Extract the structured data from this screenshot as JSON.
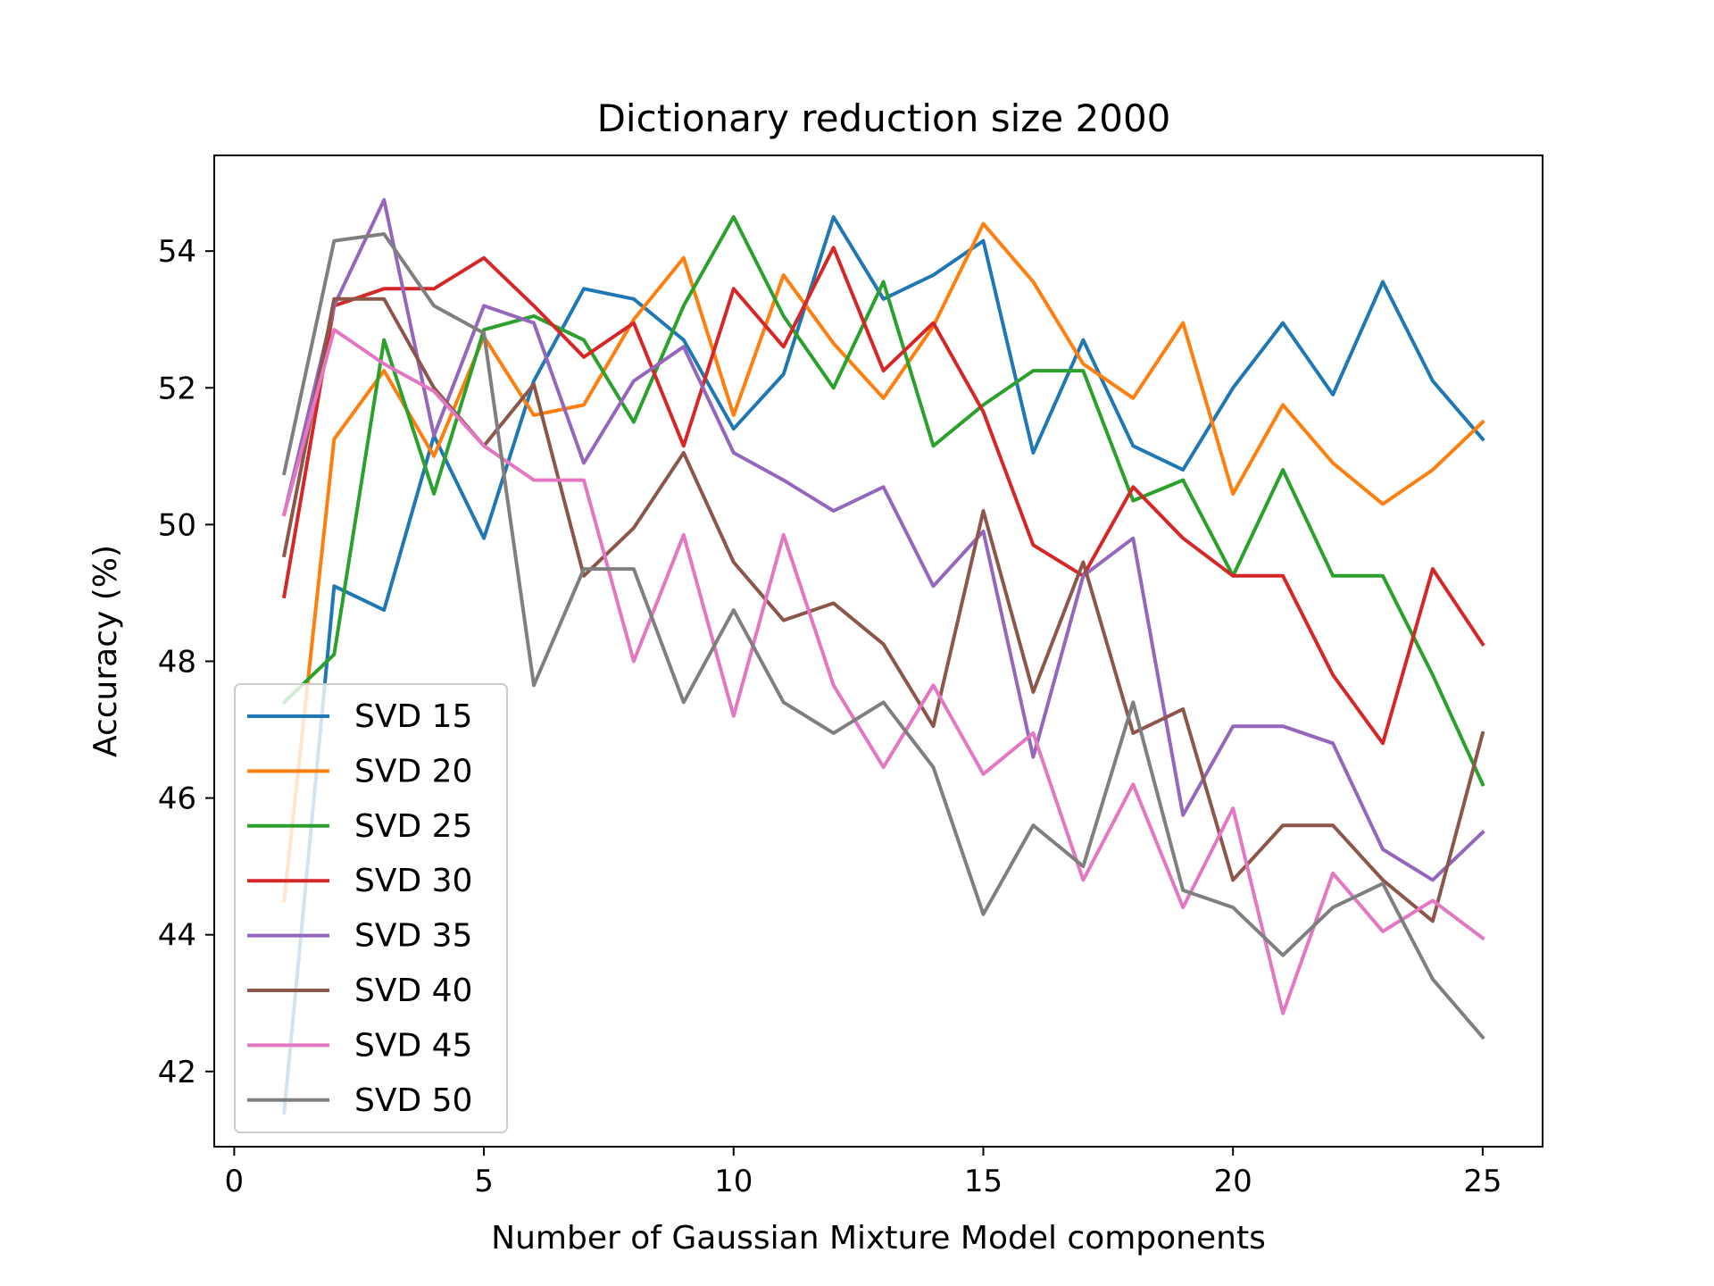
{
  "chart_data": {
    "type": "line",
    "title": "Dictionary reduction size 2000",
    "xlabel": "Number of Gaussian Mixture Model components",
    "ylabel": "Accuracy (%)",
    "xlim": [
      -0.4,
      26.2
    ],
    "ylim": [
      40.9,
      55.4
    ],
    "xticks": [
      0,
      5,
      10,
      15,
      20,
      25
    ],
    "yticks": [
      42,
      44,
      46,
      48,
      50,
      52,
      54
    ],
    "grid": false,
    "legend_position": "lower-left",
    "x": [
      1,
      2,
      3,
      4,
      5,
      6,
      7,
      8,
      9,
      10,
      11,
      12,
      13,
      14,
      15,
      16,
      17,
      18,
      19,
      20,
      21,
      22,
      23,
      24,
      25
    ],
    "series": [
      {
        "name": "SVD 15",
        "color": "#1f77b4",
        "values": [
          41.4,
          49.1,
          48.75,
          51.3,
          49.8,
          52.1,
          53.45,
          53.3,
          52.7,
          51.4,
          52.2,
          54.5,
          53.3,
          53.65,
          54.15,
          51.05,
          52.7,
          51.15,
          50.8,
          52.0,
          52.95,
          51.9,
          53.55,
          52.1,
          51.25
        ]
      },
      {
        "name": "SVD 20",
        "color": "#ff7f0e",
        "values": [
          44.5,
          51.25,
          52.25,
          51.0,
          52.75,
          51.6,
          51.75,
          53.0,
          53.9,
          51.6,
          53.65,
          52.65,
          51.85,
          52.9,
          54.4,
          53.55,
          52.35,
          51.85,
          52.95,
          50.45,
          51.75,
          50.9,
          50.3,
          50.8,
          51.5
        ]
      },
      {
        "name": "SVD 25",
        "color": "#2ca02c",
        "values": [
          47.4,
          48.1,
          52.7,
          50.45,
          52.85,
          53.05,
          52.7,
          51.5,
          53.2,
          54.5,
          53.05,
          52.0,
          53.55,
          51.15,
          51.75,
          52.25,
          52.25,
          50.35,
          50.65,
          49.25,
          50.8,
          49.25,
          49.25,
          47.8,
          46.2
        ]
      },
      {
        "name": "SVD 30",
        "color": "#d62728",
        "values": [
          48.95,
          53.2,
          53.45,
          53.45,
          53.9,
          53.2,
          52.45,
          52.95,
          51.15,
          53.45,
          52.6,
          54.05,
          52.25,
          52.95,
          51.65,
          49.7,
          49.25,
          50.55,
          49.8,
          49.25,
          49.25,
          47.8,
          46.8,
          49.35,
          48.25
        ]
      },
      {
        "name": "SVD 35",
        "color": "#9467bd",
        "values": [
          50.15,
          53.2,
          54.75,
          51.3,
          53.2,
          52.95,
          50.9,
          52.1,
          52.6,
          51.05,
          50.65,
          50.2,
          50.55,
          49.1,
          49.9,
          46.6,
          49.25,
          49.8,
          45.75,
          47.05,
          47.05,
          46.8,
          45.25,
          44.8,
          45.5
        ]
      },
      {
        "name": "SVD 40",
        "color": "#8c564b",
        "values": [
          49.55,
          53.3,
          53.3,
          52.0,
          51.15,
          52.05,
          49.25,
          49.95,
          51.05,
          49.45,
          48.6,
          48.85,
          48.25,
          47.05,
          50.2,
          47.55,
          49.45,
          46.95,
          47.3,
          44.8,
          45.6,
          45.6,
          44.8,
          44.2,
          46.95
        ]
      },
      {
        "name": "SVD 45",
        "color": "#e377c2",
        "values": [
          50.15,
          52.85,
          52.35,
          51.95,
          51.15,
          50.65,
          50.65,
          48.0,
          49.85,
          47.2,
          49.85,
          47.65,
          46.45,
          47.65,
          46.35,
          46.95,
          44.8,
          46.2,
          44.4,
          45.85,
          42.85,
          44.9,
          44.05,
          44.5,
          43.95
        ]
      },
      {
        "name": "SVD 50",
        "color": "#7f7f7f",
        "values": [
          50.75,
          54.15,
          54.25,
          53.2,
          52.8,
          47.65,
          49.35,
          49.35,
          47.4,
          48.75,
          47.4,
          46.95,
          47.4,
          46.45,
          44.3,
          45.6,
          45.0,
          47.4,
          44.65,
          44.4,
          43.7,
          44.4,
          44.75,
          43.35,
          42.5
        ]
      }
    ]
  }
}
